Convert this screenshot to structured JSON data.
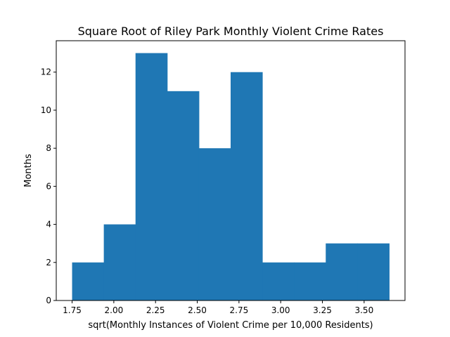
{
  "chart_data": {
    "type": "bar",
    "title": "Square Root of Riley Park Monthly Violent Crime Rates",
    "xlabel": "sqrt(Monthly Instances of Violent Crime per 10,000 Residents)",
    "ylabel": "Months",
    "bin_edges": [
      1.75,
      1.94,
      2.13,
      2.32,
      2.51,
      2.7,
      2.89,
      3.08,
      3.27,
      3.46,
      3.65
    ],
    "values": [
      2,
      4,
      13,
      11,
      8,
      12,
      2,
      2,
      3,
      3
    ],
    "xlim": [
      1.655,
      3.745
    ],
    "ylim": [
      0,
      13.65
    ],
    "xticks": [
      1.75,
      2.0,
      2.25,
      2.5,
      2.75,
      3.0,
      3.25,
      3.5
    ],
    "xtick_labels": [
      "1.75",
      "2.00",
      "2.25",
      "2.50",
      "2.75",
      "3.00",
      "3.25",
      "3.50"
    ],
    "yticks": [
      0,
      2,
      4,
      6,
      8,
      10,
      12
    ],
    "ytick_labels": [
      "0",
      "2",
      "4",
      "6",
      "8",
      "10",
      "12"
    ],
    "bar_color": "#1f77b4",
    "grid": false,
    "legend": "none"
  }
}
